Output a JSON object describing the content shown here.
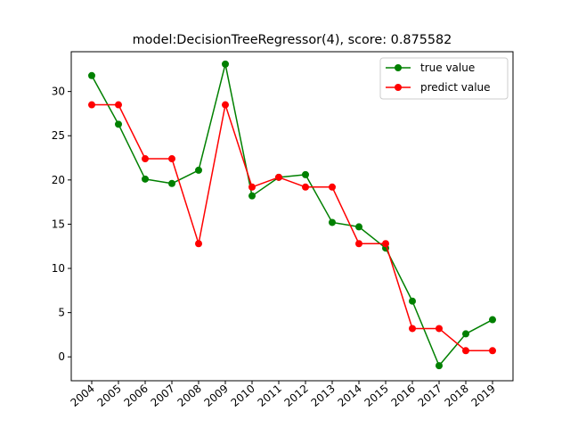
{
  "chart_data": {
    "type": "line",
    "title": "model:DecisionTreeRegressor(4), score: 0.875582",
    "xlabel": "",
    "ylabel": "",
    "categories": [
      "2004",
      "2005",
      "2006",
      "2007",
      "2008",
      "2009",
      "2010",
      "2011",
      "2012",
      "2013",
      "2014",
      "2015",
      "2016",
      "2017",
      "2018",
      "2019"
    ],
    "yticks": [
      "0",
      "5",
      "10",
      "15",
      "20",
      "25",
      "30"
    ],
    "ylim": [
      -2.7,
      34.5
    ],
    "grid": false,
    "legend_position": "upper right",
    "series": [
      {
        "name": "true value",
        "color": "#008000",
        "values": [
          31.8,
          26.3,
          20.1,
          19.6,
          21.1,
          33.1,
          18.2,
          20.3,
          20.6,
          15.2,
          14.7,
          12.3,
          6.3,
          -1.0,
          2.6,
          4.2
        ]
      },
      {
        "name": "predict value",
        "color": "#ff0000",
        "values": [
          28.5,
          28.5,
          22.4,
          22.4,
          12.8,
          28.5,
          19.2,
          20.3,
          19.2,
          19.2,
          12.8,
          12.8,
          3.2,
          3.2,
          0.7,
          0.7
        ]
      }
    ]
  }
}
